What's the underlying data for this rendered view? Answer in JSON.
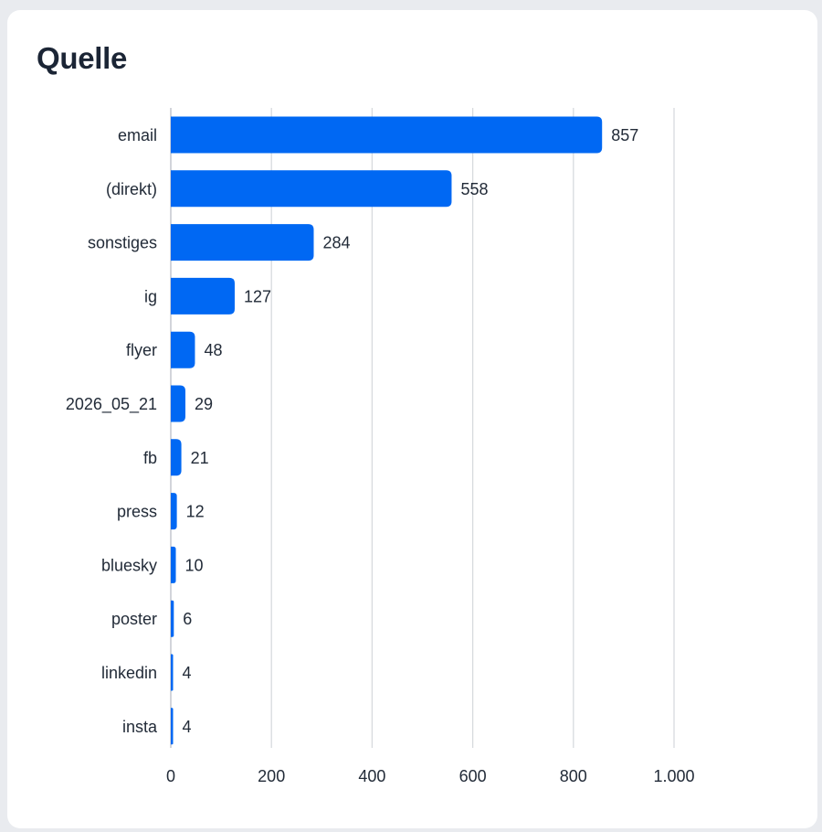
{
  "card": {
    "title": "Quelle"
  },
  "colors": {
    "bar": "#0068f3",
    "grid": "#d7dade",
    "text": "#222b38",
    "card_background": "#ffffff",
    "page_background": "#e9ebef"
  },
  "chart_data": {
    "type": "bar",
    "orientation": "horizontal",
    "title": "Quelle",
    "xlabel": "",
    "ylabel": "",
    "xlim": [
      0,
      1000
    ],
    "ticks": [
      0,
      200,
      400,
      600,
      800,
      1000
    ],
    "tick_labels": [
      "0",
      "200",
      "400",
      "600",
      "800",
      "1.000"
    ],
    "grid": true,
    "legend": "none",
    "categories": [
      "email",
      "(direkt)",
      "sonstiges",
      "ig",
      "flyer",
      "2026_05_21",
      "fb",
      "press",
      "bluesky",
      "poster",
      "linkedin",
      "insta"
    ],
    "values": [
      857,
      558,
      284,
      127,
      48,
      29,
      21,
      12,
      10,
      6,
      4,
      4
    ],
    "value_labels": [
      "857",
      "558",
      "284",
      "127",
      "48",
      "29",
      "21",
      "12",
      "10",
      "6",
      "4",
      "4"
    ]
  }
}
